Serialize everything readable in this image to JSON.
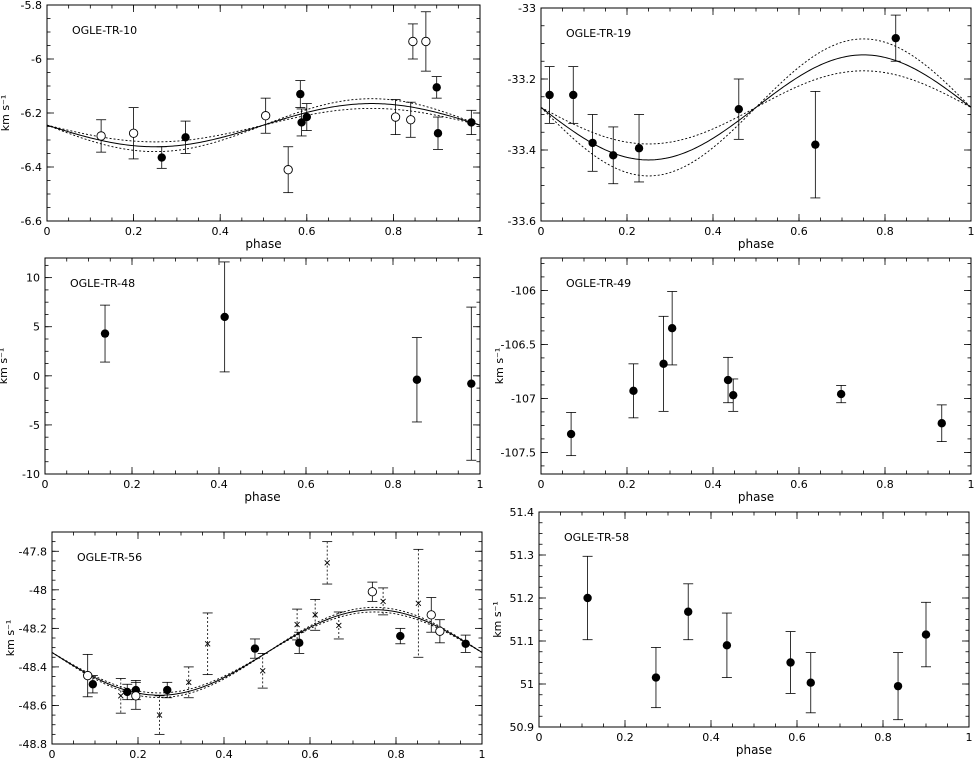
{
  "chart_data": [
    {
      "type": "scatter",
      "title": "OGLE-TR-10",
      "xlabel": "phase",
      "ylabel": "km s⁻¹",
      "xlim": [
        0,
        1
      ],
      "ylim": [
        -6.6,
        -5.8
      ],
      "xticks": [
        0,
        0.2,
        0.4,
        0.6,
        0.8,
        1
      ],
      "xtick_labels": [
        "0",
        "0.2",
        "0.4",
        "0.6",
        "0.8",
        "1"
      ],
      "yticks": [
        -6.6,
        -6.4,
        -6.2,
        -6,
        -5.8
      ],
      "ytick_labels": [
        "-6.6",
        "-6.4",
        "-6.2",
        "-6",
        "-5.8"
      ],
      "fit": {
        "gamma": -6.245,
        "K": 0.08,
        "band": 0.018
      },
      "series": [
        {
          "marker": "filled",
          "points": [
            {
              "x": 0.265,
              "y": -6.365,
              "err": 0.04
            },
            {
              "x": 0.32,
              "y": -6.29,
              "err": 0.06
            },
            {
              "x": 0.585,
              "y": -6.13,
              "err": 0.05
            },
            {
              "x": 0.588,
              "y": -6.235,
              "err": 0.05
            },
            {
              "x": 0.6,
              "y": -6.215,
              "err": 0.05
            },
            {
              "x": 0.9,
              "y": -6.105,
              "err": 0.04
            },
            {
              "x": 0.903,
              "y": -6.275,
              "err": 0.06
            },
            {
              "x": 0.98,
              "y": -6.235,
              "err": 0.045
            }
          ]
        },
        {
          "marker": "open",
          "points": [
            {
              "x": 0.125,
              "y": -6.285,
              "err": 0.06
            },
            {
              "x": 0.2,
              "y": -6.275,
              "err": 0.095
            },
            {
              "x": 0.505,
              "y": -6.21,
              "err": 0.065
            },
            {
              "x": 0.557,
              "y": -6.41,
              "err": 0.085
            },
            {
              "x": 0.805,
              "y": -6.215,
              "err": 0.065
            },
            {
              "x": 0.84,
              "y": -6.225,
              "err": 0.065
            },
            {
              "x": 0.845,
              "y": -5.935,
              "err": 0.065
            },
            {
              "x": 0.875,
              "y": -5.935,
              "err": 0.11
            }
          ]
        }
      ]
    },
    {
      "type": "scatter",
      "title": "OGLE-TR-19",
      "xlabel": "phase",
      "ylabel": "",
      "xlim": [
        0,
        1
      ],
      "ylim": [
        -33.6,
        -33
      ],
      "xticks": [
        0,
        0.2,
        0.4,
        0.6,
        0.8,
        1
      ],
      "xtick_labels": [
        "0",
        "0.2",
        "0.4",
        "0.6",
        "0.8",
        "1"
      ],
      "yticks": [
        -33.6,
        -33.4,
        -33.2,
        -33
      ],
      "ytick_labels": [
        "-33.6",
        "-33.4",
        "-33.2",
        "-33"
      ],
      "fit": {
        "gamma": -33.28,
        "K": 0.148,
        "band": 0.045
      },
      "series": [
        {
          "marker": "filled",
          "points": [
            {
              "x": 0.02,
              "y": -33.245,
              "err": 0.08
            },
            {
              "x": 0.075,
              "y": -33.245,
              "err": 0.08
            },
            {
              "x": 0.12,
              "y": -33.38,
              "err": 0.08
            },
            {
              "x": 0.168,
              "y": -33.415,
              "err": 0.08
            },
            {
              "x": 0.228,
              "y": -33.395,
              "err": 0.095
            },
            {
              "x": 0.46,
              "y": -33.285,
              "err": 0.085
            },
            {
              "x": 0.638,
              "y": -33.385,
              "err": 0.15
            },
            {
              "x": 0.825,
              "y": -33.085,
              "err": 0.065
            }
          ]
        }
      ]
    },
    {
      "type": "scatter",
      "title": "OGLE-TR-48",
      "xlabel": "phase",
      "ylabel": "km s⁻¹",
      "xlim": [
        0,
        1
      ],
      "ylim": [
        -10,
        12
      ],
      "xticks": [
        0,
        0.2,
        0.4,
        0.6,
        0.8,
        1
      ],
      "xtick_labels": [
        "0",
        "0.2",
        "0.4",
        "0.6",
        "0.8",
        "1"
      ],
      "yticks": [
        -10,
        -5,
        0,
        5,
        10
      ],
      "ytick_labels": [
        "-10",
        "-5",
        "0",
        "5",
        "10"
      ],
      "series": [
        {
          "marker": "filled",
          "points": [
            {
              "x": 0.138,
              "y": 4.3,
              "err": 2.9
            },
            {
              "x": 0.413,
              "y": 6.0,
              "err": 5.6
            },
            {
              "x": 0.855,
              "y": -0.4,
              "err": 4.3
            },
            {
              "x": 0.98,
              "y": -0.8,
              "err": 7.8
            }
          ]
        }
      ]
    },
    {
      "type": "scatter",
      "title": "OGLE-TR-49",
      "xlabel": "phase",
      "ylabel": "km s⁻¹",
      "xlim": [
        0,
        1
      ],
      "ylim": [
        -107.7,
        -105.7
      ],
      "xticks": [
        0,
        0.2,
        0.4,
        0.6,
        0.8,
        1
      ],
      "xtick_labels": [
        "0",
        "0.2",
        "0.4",
        "0.6",
        "0.8",
        "1"
      ],
      "yticks": [
        -107.5,
        -107,
        -106.5,
        -106
      ],
      "ytick_labels": [
        "-107.5",
        "-107",
        "-106.5",
        "-106"
      ],
      "series": [
        {
          "marker": "filled",
          "points": [
            {
              "x": 0.07,
              "y": -107.33,
              "err": 0.2
            },
            {
              "x": 0.215,
              "y": -106.93,
              "err": 0.25
            },
            {
              "x": 0.285,
              "y": -106.68,
              "err": 0.44
            },
            {
              "x": 0.305,
              "y": -106.35,
              "err": 0.34
            },
            {
              "x": 0.435,
              "y": -106.83,
              "err": 0.21
            },
            {
              "x": 0.447,
              "y": -106.97,
              "err": 0.15
            },
            {
              "x": 0.698,
              "y": -106.96,
              "err": 0.08
            },
            {
              "x": 0.932,
              "y": -107.23,
              "err": 0.17
            }
          ]
        }
      ]
    },
    {
      "type": "scatter",
      "title": "OGLE-TR-56",
      "xlabel": "phase",
      "ylabel": "km s⁻¹",
      "xlim": [
        0,
        1
      ],
      "ylim": [
        -48.8,
        -47.7
      ],
      "xticks": [
        0,
        0.2,
        0.4,
        0.6,
        0.8,
        1
      ],
      "xtick_labels": [
        "0",
        "0.2",
        "0.4",
        "0.6",
        "0.8",
        "1"
      ],
      "yticks": [
        -48.8,
        -48.6,
        -48.4,
        -48.2,
        -48,
        -47.8
      ],
      "ytick_labels": [
        "-48.8",
        "-48.6",
        "-48.4",
        "-48.2",
        "-48",
        "-47.8"
      ],
      "fit": {
        "gamma": -48.325,
        "K": 0.222,
        "band": 0.012
      },
      "series": [
        {
          "marker": "filled",
          "points": [
            {
              "x": 0.095,
              "y": -48.49,
              "err": 0.045
            },
            {
              "x": 0.175,
              "y": -48.53,
              "err": 0.04
            },
            {
              "x": 0.195,
              "y": -48.52,
              "err": 0.05
            },
            {
              "x": 0.268,
              "y": -48.52,
              "err": 0.04
            },
            {
              "x": 0.472,
              "y": -48.305,
              "err": 0.05
            },
            {
              "x": 0.575,
              "y": -48.275,
              "err": 0.055
            },
            {
              "x": 0.81,
              "y": -48.24,
              "err": 0.04
            },
            {
              "x": 0.962,
              "y": -48.28,
              "err": 0.045
            }
          ]
        },
        {
          "marker": "open",
          "points": [
            {
              "x": 0.083,
              "y": -48.445,
              "err": 0.11
            },
            {
              "x": 0.195,
              "y": -48.55,
              "err": 0.07
            },
            {
              "x": 0.745,
              "y": -48.01,
              "err": 0.05
            },
            {
              "x": 0.882,
              "y": -48.13,
              "err": 0.09
            },
            {
              "x": 0.902,
              "y": -48.215,
              "err": 0.06
            }
          ]
        },
        {
          "marker": "cross",
          "points": [
            {
              "x": 0.16,
              "y": -48.55,
              "err": 0.09
            },
            {
              "x": 0.25,
              "y": -48.65,
              "err": 0.1
            },
            {
              "x": 0.318,
              "y": -48.48,
              "err": 0.08
            },
            {
              "x": 0.362,
              "y": -48.28,
              "err": 0.16
            },
            {
              "x": 0.49,
              "y": -48.42,
              "err": 0.09
            },
            {
              "x": 0.57,
              "y": -48.18,
              "err": 0.08
            },
            {
              "x": 0.612,
              "y": -48.13,
              "err": 0.08
            },
            {
              "x": 0.64,
              "y": -47.86,
              "err": 0.11
            },
            {
              "x": 0.667,
              "y": -48.185,
              "err": 0.07
            },
            {
              "x": 0.77,
              "y": -48.06,
              "err": 0.07
            },
            {
              "x": 0.852,
              "y": -48.07,
              "err": 0.28
            }
          ]
        }
      ]
    },
    {
      "type": "scatter",
      "title": "OGLE-TR-58",
      "xlabel": "phase",
      "ylabel": "km s⁻¹",
      "xlim": [
        0,
        1
      ],
      "ylim": [
        50.9,
        51.4
      ],
      "xticks": [
        0,
        0.2,
        0.4,
        0.6,
        0.8,
        1
      ],
      "xtick_labels": [
        "0",
        "0.2",
        "0.4",
        "0.6",
        "0.8",
        "1"
      ],
      "yticks": [
        50.9,
        51,
        51.1,
        51.2,
        51.3,
        51.4
      ],
      "ytick_labels": [
        "50.9",
        "51",
        "51.1",
        "51.2",
        "51.3",
        "51.4"
      ],
      "series": [
        {
          "marker": "filled",
          "points": [
            {
              "x": 0.113,
              "y": 51.2,
              "err": 0.097
            },
            {
              "x": 0.272,
              "y": 51.015,
              "err": 0.07
            },
            {
              "x": 0.347,
              "y": 51.168,
              "err": 0.065
            },
            {
              "x": 0.437,
              "y": 51.09,
              "err": 0.075
            },
            {
              "x": 0.585,
              "y": 51.05,
              "err": 0.072
            },
            {
              "x": 0.632,
              "y": 51.003,
              "err": 0.07
            },
            {
              "x": 0.835,
              "y": 50.995,
              "err": 0.078
            },
            {
              "x": 0.9,
              "y": 51.115,
              "err": 0.075
            }
          ]
        }
      ]
    }
  ]
}
